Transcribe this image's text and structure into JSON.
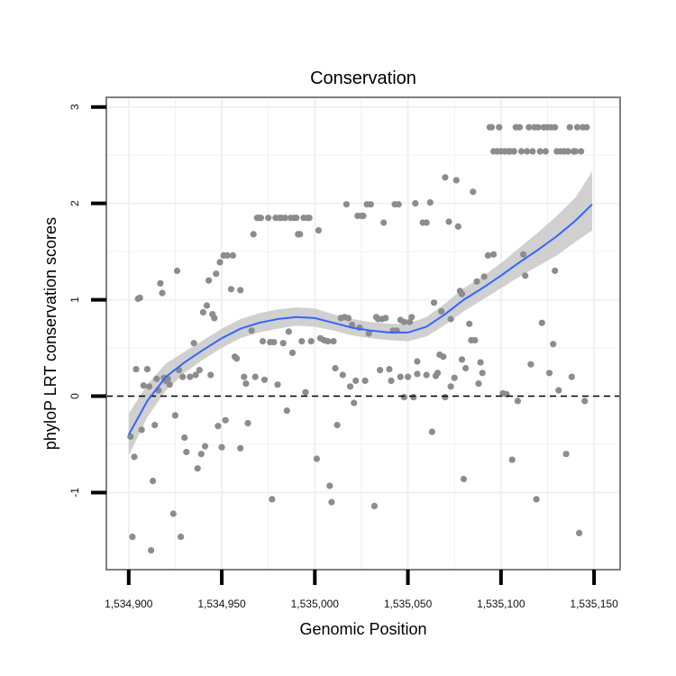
{
  "chart_data": {
    "type": "scatter",
    "title": "Conservation",
    "xlabel": "Genomic Position",
    "ylabel": "phyloP LRT conservation scores",
    "xlim": [
      1534888,
      1535164
    ],
    "ylim": [
      -1.8,
      3.1
    ],
    "x_ticks": [
      1534900,
      1534950,
      1535000,
      1535050,
      1535100,
      1535150
    ],
    "x_tick_labels": [
      "1,534,900",
      "1,534,950",
      "1,535,000",
      "1,535,050",
      "1,535,100",
      "1,535,150"
    ],
    "y_ticks": [
      -1,
      0,
      1,
      2,
      3
    ],
    "y_tick_labels": [
      "-1",
      "0",
      "1",
      "2",
      "3"
    ],
    "grid": true,
    "reference_line": {
      "y": 0,
      "style": "dashed"
    },
    "colors": {
      "points": "#8c8c8c",
      "smooth": "#3366ff",
      "ribbon": "#c8c8c8",
      "frame": "#7f7f7f",
      "grid": "#f0f0f0"
    },
    "points": [
      [
        1534901,
        -0.42
      ],
      [
        1534902,
        -1.46
      ],
      [
        1534903,
        -0.63
      ],
      [
        1534904,
        0.28
      ],
      [
        1534905,
        1.01
      ],
      [
        1534906,
        1.02
      ],
      [
        1534907,
        -0.35
      ],
      [
        1534908,
        0.11
      ],
      [
        1534910,
        0.28
      ],
      [
        1534911,
        0.1
      ],
      [
        1534912,
        -1.6
      ],
      [
        1534913,
        -0.88
      ],
      [
        1534914,
        -0.3
      ],
      [
        1534915,
        0.18
      ],
      [
        1534916,
        0.06
      ],
      [
        1534917,
        1.17
      ],
      [
        1534918,
        1.07
      ],
      [
        1534919,
        0.19
      ],
      [
        1534920,
        0.16
      ],
      [
        1534921,
        0.18
      ],
      [
        1534922,
        0.12
      ],
      [
        1534924,
        -1.22
      ],
      [
        1534925,
        -0.2
      ],
      [
        1534926,
        1.3
      ],
      [
        1534927,
        0.27
      ],
      [
        1534928,
        -1.46
      ],
      [
        1534929,
        0.2
      ],
      [
        1534930,
        -0.43
      ],
      [
        1534931,
        -0.58
      ],
      [
        1534933,
        0.2
      ],
      [
        1534935,
        0.55
      ],
      [
        1534936,
        0.22
      ],
      [
        1534937,
        -0.75
      ],
      [
        1534938,
        0.27
      ],
      [
        1534939,
        -0.6
      ],
      [
        1534940,
        0.87
      ],
      [
        1534941,
        -0.52
      ],
      [
        1534942,
        0.94
      ],
      [
        1534943,
        1.2
      ],
      [
        1534944,
        0.22
      ],
      [
        1534945,
        0.85
      ],
      [
        1534946,
        0.81
      ],
      [
        1534947,
        1.27
      ],
      [
        1534948,
        -0.31
      ],
      [
        1534949,
        1.39
      ],
      [
        1534950,
        -0.53
      ],
      [
        1534951,
        1.46
      ],
      [
        1534952,
        -0.25
      ],
      [
        1534953,
        1.46
      ],
      [
        1534955,
        1.11
      ],
      [
        1534956,
        1.46
      ],
      [
        1534957,
        0.41
      ],
      [
        1534958,
        0.39
      ],
      [
        1534960,
        1.1
      ],
      [
        1534960,
        -0.54
      ],
      [
        1534962,
        0.2
      ],
      [
        1534963,
        0.13
      ],
      [
        1534964,
        -0.28
      ],
      [
        1534966,
        0.68
      ],
      [
        1534967,
        1.68
      ],
      [
        1534968,
        0.2
      ],
      [
        1534969,
        1.85
      ],
      [
        1534970,
        1.85
      ],
      [
        1534971,
        1.85
      ],
      [
        1534972,
        0.57
      ],
      [
        1534973,
        0.17
      ],
      [
        1534975,
        1.85
      ],
      [
        1534976,
        0.56
      ],
      [
        1534977,
        -1.07
      ],
      [
        1534978,
        0.56
      ],
      [
        1534979,
        1.85
      ],
      [
        1534980,
        0.12
      ],
      [
        1534981,
        1.85
      ],
      [
        1534982,
        1.85
      ],
      [
        1534983,
        0.55
      ],
      [
        1534984,
        1.85
      ],
      [
        1534985,
        -0.15
      ],
      [
        1534986,
        0.67
      ],
      [
        1534987,
        1.85
      ],
      [
        1534988,
        0.45
      ],
      [
        1534989,
        1.85
      ],
      [
        1534990,
        1.85
      ],
      [
        1534991,
        1.68
      ],
      [
        1534992,
        1.68
      ],
      [
        1534993,
        0.57
      ],
      [
        1534994,
        1.85
      ],
      [
        1534995,
        0.04
      ],
      [
        1534996,
        1.85
      ],
      [
        1534997,
        1.85
      ],
      [
        1534998,
        0.57
      ],
      [
        1535001,
        -0.65
      ],
      [
        1535002,
        1.72
      ],
      [
        1535003,
        0.6
      ],
      [
        1535005,
        0.58
      ],
      [
        1535007,
        0.57
      ],
      [
        1535008,
        -0.93
      ],
      [
        1535009,
        -1.1
      ],
      [
        1535010,
        0.57
      ],
      [
        1535011,
        0.29
      ],
      [
        1535012,
        -0.3
      ],
      [
        1535014,
        0.81
      ],
      [
        1535015,
        0.22
      ],
      [
        1535016,
        0.82
      ],
      [
        1535017,
        1.99
      ],
      [
        1535018,
        0.81
      ],
      [
        1535019,
        0.1
      ],
      [
        1535020,
        0.74
      ],
      [
        1535021,
        -0.07
      ],
      [
        1535022,
        0.16
      ],
      [
        1535023,
        1.87
      ],
      [
        1535024,
        0.71
      ],
      [
        1535025,
        1.87
      ],
      [
        1535026,
        1.87
      ],
      [
        1535027,
        0.16
      ],
      [
        1535028,
        1.99
      ],
      [
        1535029,
        0.65
      ],
      [
        1535030,
        1.99
      ],
      [
        1535032,
        -1.14
      ],
      [
        1535033,
        0.82
      ],
      [
        1535034,
        0.8
      ],
      [
        1535035,
        0.27
      ],
      [
        1535036,
        0.8
      ],
      [
        1535037,
        1.8
      ],
      [
        1535038,
        0.81
      ],
      [
        1535040,
        0.28
      ],
      [
        1535041,
        0.16
      ],
      [
        1535042,
        0.68
      ],
      [
        1535043,
        1.99
      ],
      [
        1535044,
        0.68
      ],
      [
        1535045,
        1.99
      ],
      [
        1535046,
        0.2
      ],
      [
        1535046,
        0.79
      ],
      [
        1535048,
        -0.01
      ],
      [
        1535048,
        0.77
      ],
      [
        1535050,
        0.2
      ],
      [
        1535051,
        0.77
      ],
      [
        1535052,
        0.82
      ],
      [
        1535053,
        -0.01
      ],
      [
        1535054,
        2.0
      ],
      [
        1535055,
        0.36
      ],
      [
        1535055,
        0.23
      ],
      [
        1535058,
        1.8
      ],
      [
        1535060,
        1.8
      ],
      [
        1535060,
        0.22
      ],
      [
        1535062,
        2.01
      ],
      [
        1535063,
        -0.37
      ],
      [
        1535064,
        0.97
      ],
      [
        1535065,
        0.21
      ],
      [
        1535066,
        0.24
      ],
      [
        1535067,
        0.43
      ],
      [
        1535068,
        0.88
      ],
      [
        1535069,
        0.41
      ],
      [
        1535070,
        -0.01
      ],
      [
        1535070,
        2.27
      ],
      [
        1535072,
        1.81
      ],
      [
        1535073,
        0.1
      ],
      [
        1535073,
        0.8
      ],
      [
        1535075,
        0.19
      ],
      [
        1535076,
        2.24
      ],
      [
        1535077,
        1.76
      ],
      [
        1535078,
        1.09
      ],
      [
        1535079,
        0.38
      ],
      [
        1535079,
        1.06
      ],
      [
        1535080,
        -0.86
      ],
      [
        1535081,
        0.29
      ],
      [
        1535083,
        0.75
      ],
      [
        1535084,
        0.58
      ],
      [
        1535085,
        2.12
      ],
      [
        1535086,
        0.58
      ],
      [
        1535087,
        1.19
      ],
      [
        1535088,
        0.13
      ],
      [
        1535089,
        0.35
      ],
      [
        1535090,
        0.24
      ],
      [
        1535091,
        1.24
      ],
      [
        1535093,
        1.46
      ],
      [
        1535094,
        2.79
      ],
      [
        1535095,
        2.79
      ],
      [
        1535096,
        2.54
      ],
      [
        1535096,
        1.47
      ],
      [
        1535098,
        2.54
      ],
      [
        1535099,
        2.79
      ],
      [
        1535100,
        2.54
      ],
      [
        1535101,
        0.03
      ],
      [
        1535102,
        2.54
      ],
      [
        1535103,
        0.02
      ],
      [
        1535104,
        2.54
      ],
      [
        1535105,
        2.54
      ],
      [
        1535106,
        -0.66
      ],
      [
        1535107,
        2.54
      ],
      [
        1535108,
        2.79
      ],
      [
        1535109,
        -0.05
      ],
      [
        1535110,
        2.79
      ],
      [
        1535111,
        2.54
      ],
      [
        1535112,
        1.47
      ],
      [
        1535113,
        1.25
      ],
      [
        1535114,
        2.54
      ],
      [
        1535115,
        2.79
      ],
      [
        1535116,
        0.33
      ],
      [
        1535117,
        2.54
      ],
      [
        1535118,
        2.79
      ],
      [
        1535119,
        -1.07
      ],
      [
        1535120,
        2.79
      ],
      [
        1535121,
        2.54
      ],
      [
        1535122,
        0.76
      ],
      [
        1535123,
        2.79
      ],
      [
        1535124,
        2.54
      ],
      [
        1535125,
        2.79
      ],
      [
        1535126,
        0.24
      ],
      [
        1535127,
        2.79
      ],
      [
        1535128,
        0.54
      ],
      [
        1535129,
        2.79
      ],
      [
        1535129,
        1.3
      ],
      [
        1535130,
        2.54
      ],
      [
        1535131,
        0.06
      ],
      [
        1535132,
        2.54
      ],
      [
        1535134,
        2.54
      ],
      [
        1535135,
        -0.6
      ],
      [
        1535136,
        2.54
      ],
      [
        1535137,
        2.79
      ],
      [
        1535138,
        0.2
      ],
      [
        1535139,
        2.54
      ],
      [
        1535140,
        2.54
      ],
      [
        1535141,
        2.79
      ],
      [
        1535142,
        -1.42
      ],
      [
        1535143,
        2.54
      ],
      [
        1535144,
        2.79
      ],
      [
        1535145,
        -0.05
      ],
      [
        1535146,
        2.79
      ]
    ],
    "smooth_fit": {
      "x": [
        1534900,
        1534910,
        1534920,
        1534930,
        1534940,
        1534950,
        1534960,
        1534970,
        1534980,
        1534990,
        1535000,
        1535010,
        1535020,
        1535030,
        1535040,
        1535050,
        1535060,
        1535070,
        1535080,
        1535090,
        1535100,
        1535110,
        1535120,
        1535130,
        1535140,
        1535149
      ],
      "y": [
        -0.4,
        -0.05,
        0.2,
        0.35,
        0.48,
        0.6,
        0.7,
        0.76,
        0.8,
        0.82,
        0.81,
        0.76,
        0.71,
        0.68,
        0.66,
        0.66,
        0.72,
        0.85,
        1.0,
        1.12,
        1.25,
        1.39,
        1.52,
        1.66,
        1.82,
        1.99
      ],
      "lower": [
        -0.62,
        -0.22,
        0.06,
        0.24,
        0.38,
        0.5,
        0.6,
        0.66,
        0.7,
        0.73,
        0.72,
        0.68,
        0.63,
        0.6,
        0.58,
        0.57,
        0.62,
        0.74,
        0.88,
        1.0,
        1.12,
        1.24,
        1.35,
        1.46,
        1.6,
        1.72
      ],
      "upper": [
        -0.18,
        0.12,
        0.34,
        0.46,
        0.58,
        0.7,
        0.8,
        0.86,
        0.9,
        0.92,
        0.91,
        0.85,
        0.8,
        0.77,
        0.75,
        0.75,
        0.82,
        0.96,
        1.12,
        1.24,
        1.38,
        1.54,
        1.7,
        1.87,
        2.06,
        2.33
      ]
    }
  }
}
